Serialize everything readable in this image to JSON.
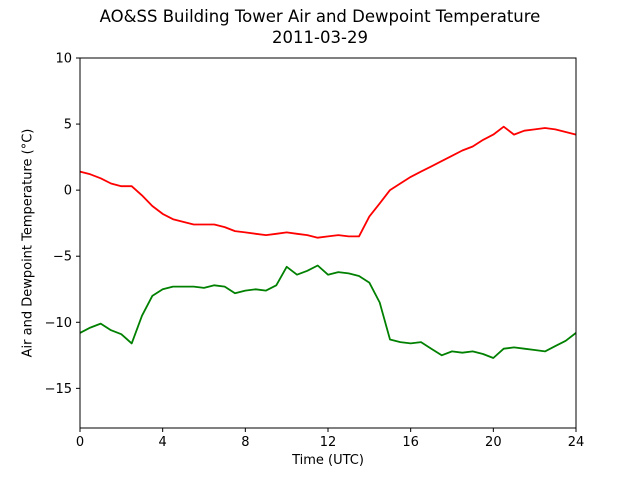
{
  "chart_data": {
    "type": "line",
    "title": "AO&SS Building Tower Air and Dewpoint Temperature",
    "subtitle": "2011-03-29",
    "xlabel": "Time (UTC)",
    "ylabel": "Air and Dewpoint Temperature (°C)",
    "xlim": [
      0,
      24
    ],
    "ylim": [
      -18,
      10
    ],
    "xticks": [
      0,
      4,
      8,
      12,
      16,
      20,
      24
    ],
    "yticks": [
      -15,
      -10,
      -5,
      0,
      5,
      10
    ],
    "grid": false,
    "legend": "none",
    "x": [
      0,
      0.5,
      1,
      1.5,
      2,
      2.5,
      3,
      3.5,
      4,
      4.5,
      5,
      5.5,
      6,
      6.5,
      7,
      7.5,
      8,
      8.5,
      9,
      9.5,
      10,
      10.5,
      11,
      11.5,
      12,
      12.5,
      13,
      13.5,
      14,
      14.5,
      15,
      15.5,
      16,
      16.5,
      17,
      17.5,
      18,
      18.5,
      19,
      19.5,
      20,
      20.5,
      21,
      21.5,
      22,
      22.5,
      23,
      23.5,
      24
    ],
    "series": [
      {
        "color": "#ff0000",
        "values": [
          1.4,
          1.2,
          0.9,
          0.5,
          0.3,
          0.3,
          -0.4,
          -1.2,
          -1.8,
          -2.2,
          -2.4,
          -2.6,
          -2.6,
          -2.6,
          -2.8,
          -3.1,
          -3.2,
          -3.3,
          -3.4,
          -3.3,
          -3.2,
          -3.3,
          -3.4,
          -3.6,
          -3.5,
          -3.4,
          -3.5,
          -3.5,
          -2.0,
          -1.0,
          0.0,
          0.5,
          1.0,
          1.4,
          1.8,
          2.2,
          2.6,
          3.0,
          3.3,
          3.8,
          4.2,
          4.8,
          4.2,
          4.5,
          4.6,
          4.7,
          4.6,
          4.4,
          4.2
        ]
      },
      {
        "color": "#008000",
        "values": [
          -10.8,
          -10.4,
          -10.1,
          -10.6,
          -10.9,
          -11.6,
          -9.5,
          -8.0,
          -7.5,
          -7.3,
          -7.3,
          -7.3,
          -7.4,
          -7.2,
          -7.3,
          -7.8,
          -7.6,
          -7.5,
          -7.6,
          -7.2,
          -5.8,
          -6.4,
          -6.1,
          -5.7,
          -6.4,
          -6.2,
          -6.3,
          -6.5,
          -7.0,
          -8.5,
          -11.3,
          -11.5,
          -11.6,
          -11.5,
          -12.0,
          -12.5,
          -12.2,
          -12.3,
          -12.2,
          -12.4,
          -12.7,
          -12.0,
          -11.9,
          -12.0,
          -12.1,
          -12.2,
          -11.8,
          -11.4,
          -10.8
        ]
      }
    ]
  }
}
